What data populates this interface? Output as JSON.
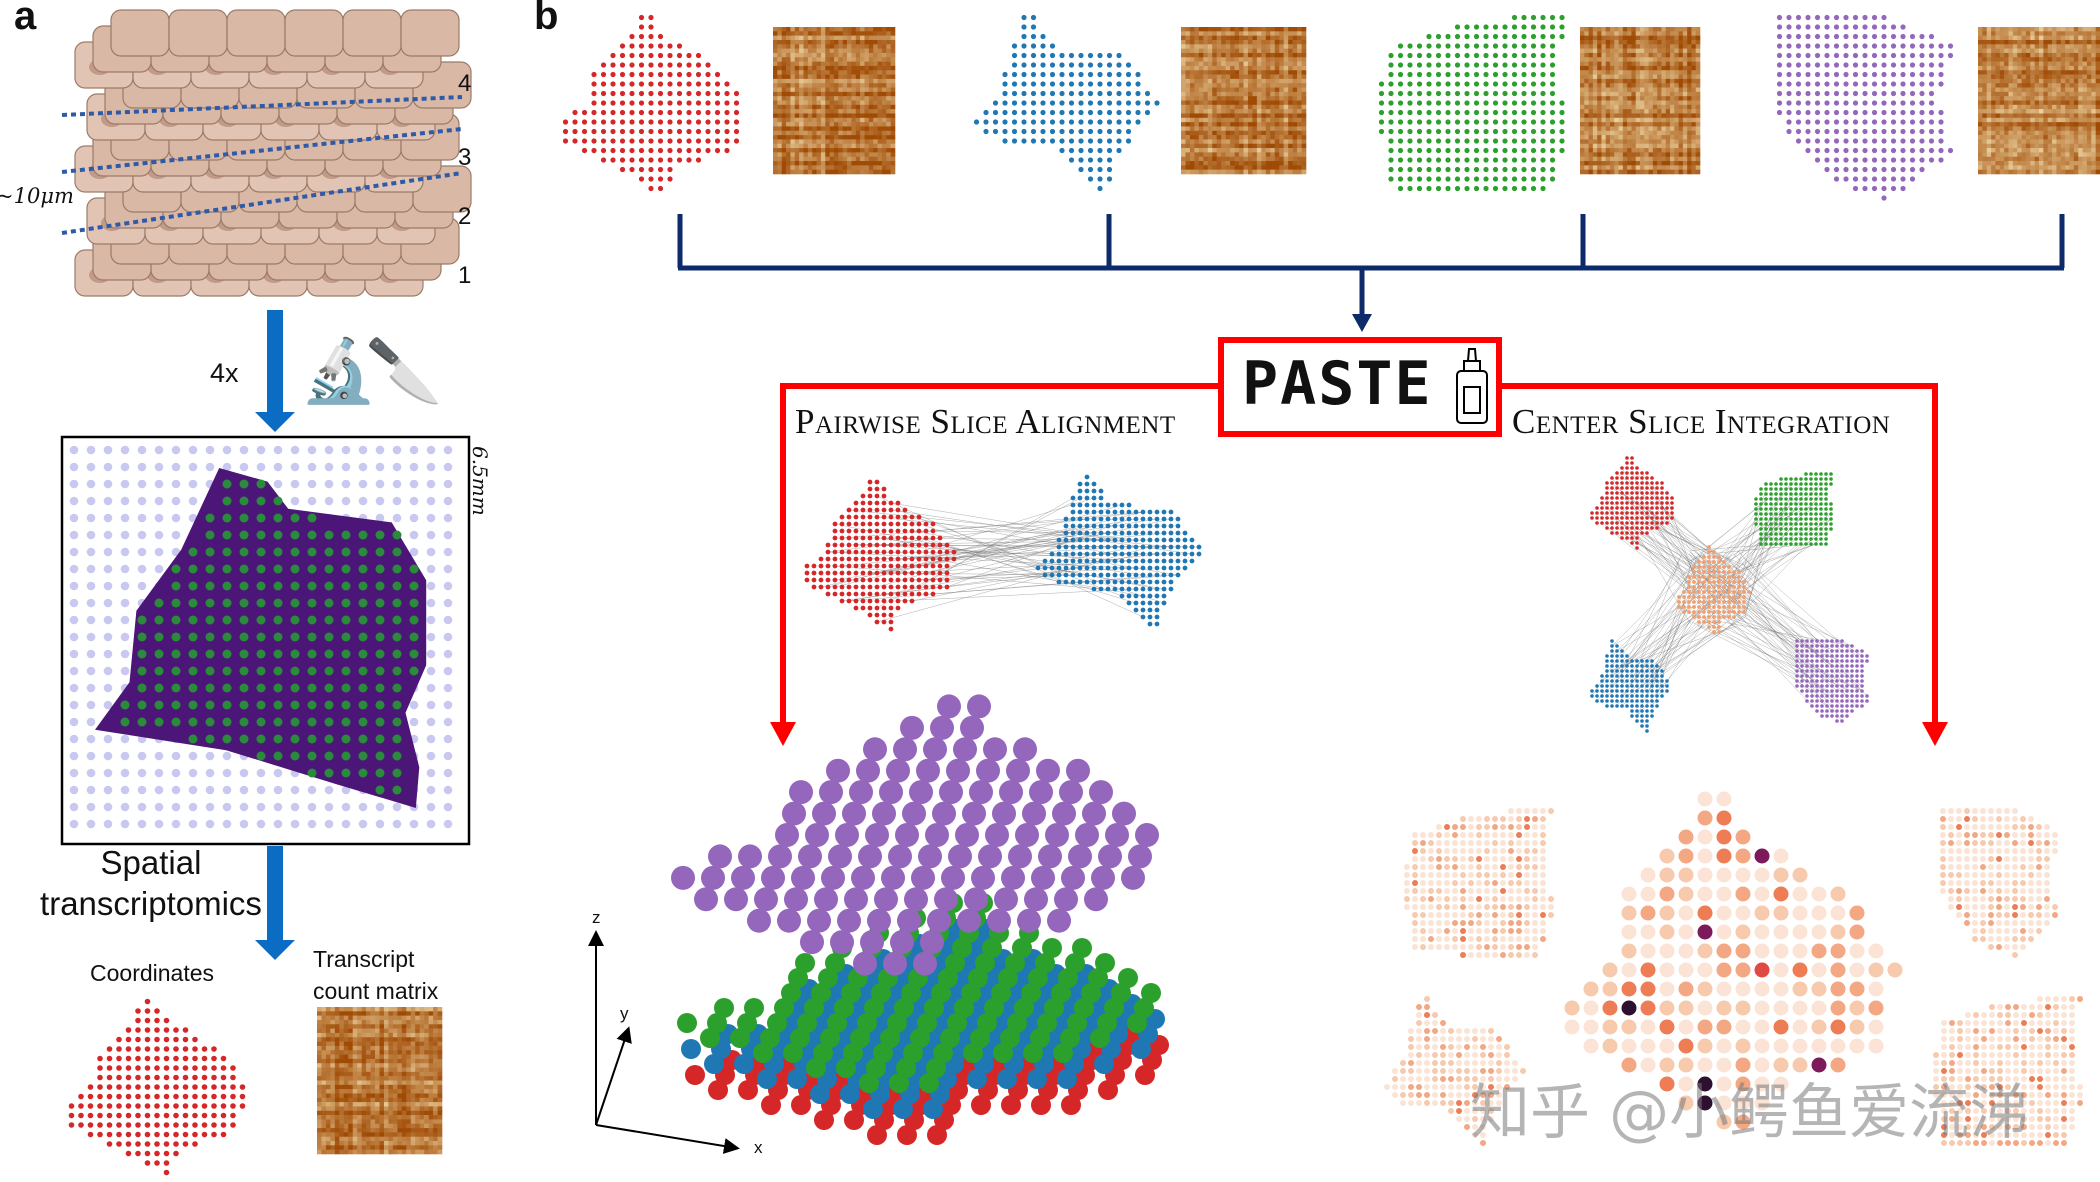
{
  "panel_a": {
    "letter": "a",
    "layer_labels": [
      "4",
      "3",
      "2",
      "1"
    ],
    "thickness_label": "~10μm",
    "replicate_label": "4x",
    "icons": [
      "microscope-icon",
      "knife-icon"
    ],
    "array_size_label": "6.5mm",
    "technology_label_line1": "Spatial",
    "technology_label_line2": "transcriptomics",
    "coordinates_label": "Coordinates",
    "matrix_label_line1": "Transcript",
    "matrix_label_line2": "count matrix"
  },
  "panel_b": {
    "letter": "b",
    "method_name": "PASTE",
    "method_icon": "glue-bottle-icon",
    "left_branch_title": "Pairwise Slice Alignment",
    "right_branch_title": "Center Slice Integration",
    "axis_labels": {
      "x": "x",
      "y": "y",
      "z": "z"
    }
  },
  "colors": {
    "slice_1": "#d62728",
    "slice_2": "#1f77b4",
    "slice_3": "#2ca02c",
    "slice_4": "#9467bd",
    "center_slice": "#f0a070",
    "bracket": "#0d2a6b",
    "paste_red": "#ff0000",
    "arrow_blue": "#0a6cc2",
    "tissue_purple": "#4b1678",
    "spot_green": "#2a8c3a",
    "array_spot": "#c8c8f0"
  },
  "watermark": "知乎 @小鳄鱼爱流涕"
}
